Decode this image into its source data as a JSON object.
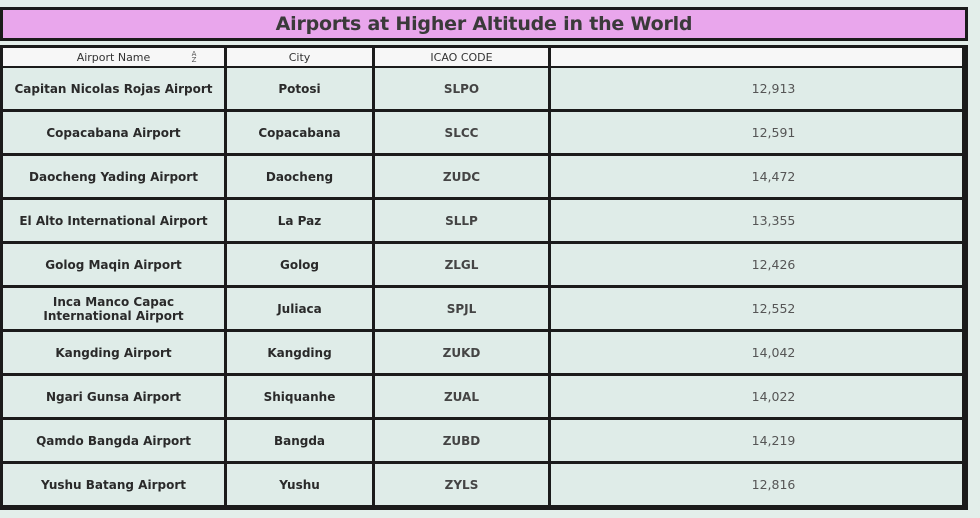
{
  "title": "Airports at Higher Altitude in the World",
  "table": {
    "columns": [
      "Airport Name",
      "City",
      "ICAO CODE",
      ""
    ],
    "sort_icon": "sort-ascending-icon",
    "sort_glyph": "A\nZ",
    "rows": [
      {
        "name": "Capitan Nicolas Rojas Airport",
        "city": "Potosi",
        "icao": "SLPO",
        "altitude": "12,913"
      },
      {
        "name": "Copacabana Airport",
        "city": "Copacabana",
        "icao": "SLCC",
        "altitude": "12,591"
      },
      {
        "name": "Daocheng Yading Airport",
        "city": "Daocheng",
        "icao": "ZUDC",
        "altitude": "14,472"
      },
      {
        "name": "El Alto International Airport",
        "city": "La Paz",
        "icao": "SLLP",
        "altitude": "13,355"
      },
      {
        "name": "Golog Maqin Airport",
        "city": "Golog",
        "icao": "ZLGL",
        "altitude": "12,426"
      },
      {
        "name": "Inca Manco Capac International Airport",
        "city": "Juliaca",
        "icao": "SPJL",
        "altitude": "12,552"
      },
      {
        "name": "Kangding Airport",
        "city": "Kangding",
        "icao": "ZUKD",
        "altitude": "14,042"
      },
      {
        "name": "Ngari Gunsa Airport",
        "city": "Shiquanhe",
        "icao": "ZUAL",
        "altitude": "14,022"
      },
      {
        "name": "Qamdo Bangda Airport",
        "city": "Bangda",
        "icao": "ZUBD",
        "altitude": "14,219"
      },
      {
        "name": "Yushu Batang Airport",
        "city": "Yushu",
        "icao": "ZYLS",
        "altitude": "12,816"
      }
    ]
  },
  "colors": {
    "title_bg": "#e9a6ec",
    "cell_bg": "#dfece8",
    "page_bg": "#e3eeea",
    "border": "#1b1b1b"
  }
}
